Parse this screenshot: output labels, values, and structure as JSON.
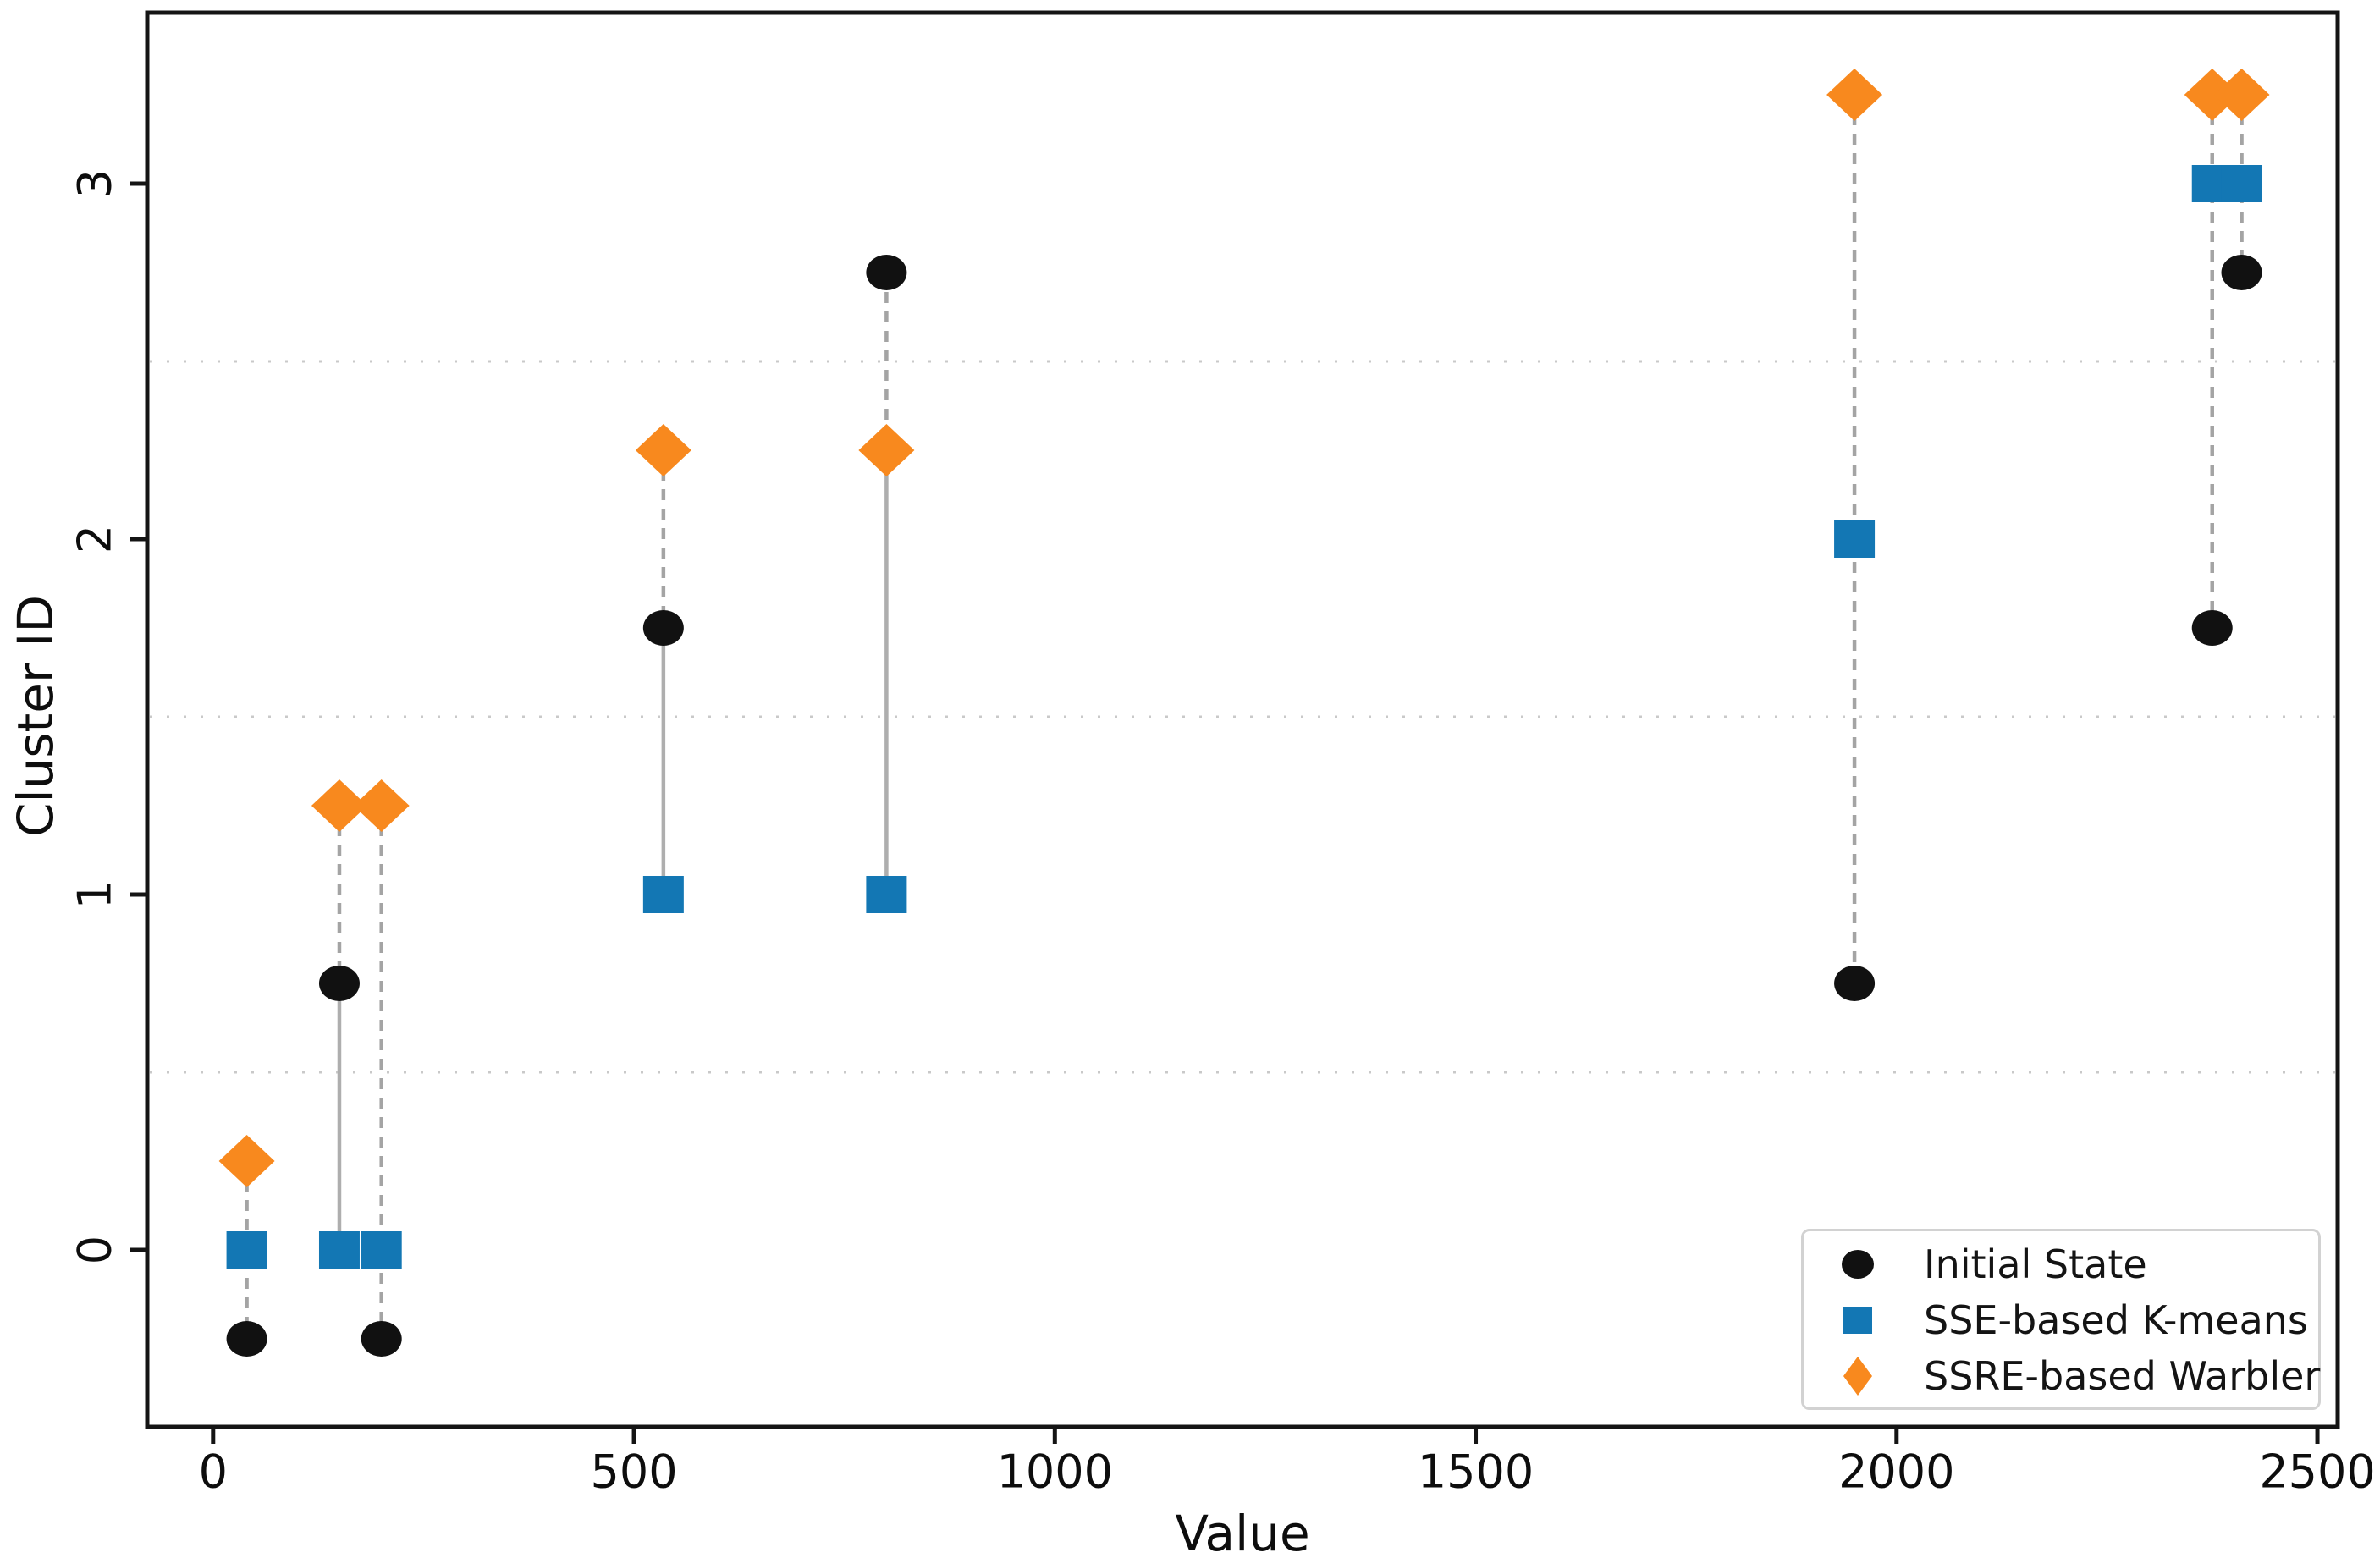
{
  "figure": {
    "background": "#ffffff"
  },
  "chart_data": {
    "type": "scatter",
    "title": "",
    "xlabel": "Value",
    "ylabel": "Cluster ID",
    "x_ticks": [
      0,
      500,
      1000,
      1500,
      2000,
      2500
    ],
    "y_ticks": [
      0,
      1,
      2,
      3
    ],
    "xlim": [
      -78,
      2526
    ],
    "ylim": [
      -0.49,
      3.49
    ],
    "grid": "horizontal dotted",
    "gridlines_y": [
      0.5,
      1.5,
      2.5
    ],
    "legend_position": "lower right",
    "colors": {
      "initial": "#111111",
      "kmeans": "#1377b4",
      "warbler": "#f8891e",
      "connector_dashed": "#a4a4a4",
      "connector_solid": "#aeaeae",
      "gridline": "#c9c9c9"
    },
    "x_values": [
      40,
      150,
      200,
      535,
      800,
      1950,
      2375,
      2410
    ],
    "series": [
      {
        "name": "Initial State",
        "marker": "circle",
        "color": "#111111",
        "cluster_offset": -0.25,
        "points": [
          {
            "x": 40,
            "cluster": 0,
            "y": -0.25
          },
          {
            "x": 150,
            "cluster": 1,
            "y": 0.75
          },
          {
            "x": 200,
            "cluster": 0,
            "y": -0.25
          },
          {
            "x": 535,
            "cluster": 2,
            "y": 1.75
          },
          {
            "x": 800,
            "cluster": 3,
            "y": 2.75
          },
          {
            "x": 1950,
            "cluster": 1,
            "y": 0.75
          },
          {
            "x": 2375,
            "cluster": 2,
            "y": 1.75
          },
          {
            "x": 2410,
            "cluster": 3,
            "y": 2.75
          }
        ]
      },
      {
        "name": "SSE-based K-means",
        "marker": "square",
        "color": "#1377b4",
        "cluster_offset": 0,
        "points": [
          {
            "x": 40,
            "cluster": 0,
            "y": 0
          },
          {
            "x": 150,
            "cluster": 0,
            "y": 0
          },
          {
            "x": 200,
            "cluster": 0,
            "y": 0
          },
          {
            "x": 535,
            "cluster": 1,
            "y": 1
          },
          {
            "x": 800,
            "cluster": 1,
            "y": 1
          },
          {
            "x": 1950,
            "cluster": 2,
            "y": 2
          },
          {
            "x": 2375,
            "cluster": 3,
            "y": 3
          },
          {
            "x": 2410,
            "cluster": 3,
            "y": 3
          }
        ]
      },
      {
        "name": "SSRE-based Warbler",
        "marker": "diamond",
        "color": "#f8891e",
        "cluster_offset": 0.25,
        "points": [
          {
            "x": 40,
            "cluster": 0,
            "y": 0.25
          },
          {
            "x": 150,
            "cluster": 1,
            "y": 1.25
          },
          {
            "x": 200,
            "cluster": 1,
            "y": 1.25
          },
          {
            "x": 535,
            "cluster": 2,
            "y": 2.25
          },
          {
            "x": 800,
            "cluster": 2,
            "y": 2.25
          },
          {
            "x": 1950,
            "cluster": 3,
            "y": 3.25
          },
          {
            "x": 2375,
            "cluster": 3,
            "y": 3.25
          },
          {
            "x": 2410,
            "cluster": 3,
            "y": 3.25
          }
        ]
      }
    ],
    "connectors": [
      {
        "x": 40,
        "segments": [
          {
            "y1": 0.25,
            "y2": -0.25,
            "style": "dashed"
          }
        ]
      },
      {
        "x": 150,
        "segments": [
          {
            "y1": 1.25,
            "y2": 0.75,
            "style": "dashed"
          },
          {
            "y1": 0.75,
            "y2": 0,
            "style": "solid"
          }
        ]
      },
      {
        "x": 200,
        "segments": [
          {
            "y1": 1.25,
            "y2": -0.25,
            "style": "dashed"
          }
        ]
      },
      {
        "x": 535,
        "segments": [
          {
            "y1": 2.25,
            "y2": 1.75,
            "style": "dashed"
          },
          {
            "y1": 1.75,
            "y2": 1,
            "style": "solid"
          }
        ]
      },
      {
        "x": 800,
        "segments": [
          {
            "y1": 2.75,
            "y2": 2.25,
            "style": "dashed"
          },
          {
            "y1": 2.25,
            "y2": 1,
            "style": "solid"
          }
        ]
      },
      {
        "x": 1950,
        "segments": [
          {
            "y1": 3.25,
            "y2": 0.75,
            "style": "dashed"
          }
        ]
      },
      {
        "x": 2375,
        "segments": [
          {
            "y1": 3.25,
            "y2": 1.75,
            "style": "dashed"
          }
        ]
      },
      {
        "x": 2410,
        "segments": [
          {
            "y1": 3.25,
            "y2": 2.75,
            "style": "dashed"
          }
        ]
      }
    ]
  }
}
